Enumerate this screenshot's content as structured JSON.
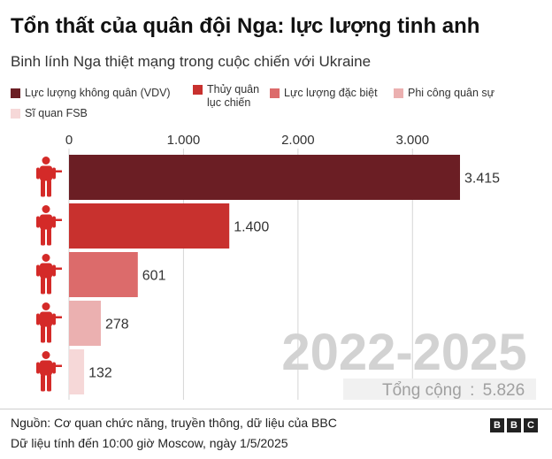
{
  "header": {
    "title": "Tổn thất của quân đội Nga: lực lượng tinh anh",
    "subtitle": "Binh lính Nga thiệt mạng trong cuộc chiến với Ukraine"
  },
  "chart_data": {
    "type": "bar",
    "orientation": "horizontal",
    "categories": [
      "Lực lượng không quân (VDV)",
      "Thủy quân lục chiến",
      "Lực lượng đặc biệt",
      "Phi công quân sự",
      "Sĩ quan FSB"
    ],
    "values": [
      3415,
      1400,
      601,
      278,
      132
    ],
    "value_labels": [
      "3.415",
      "1.400",
      "601",
      "278",
      "132"
    ],
    "colors": [
      "#6b1e24",
      "#c8312e",
      "#dc6b6b",
      "#ebb0b0",
      "#f6d8d8"
    ],
    "x_ticks": [
      0,
      1000,
      2000,
      3000
    ],
    "x_tick_labels": [
      "0",
      "1.000",
      "2.000",
      "3.000"
    ],
    "xlim": [
      0,
      3415
    ],
    "grid": true,
    "legend_position": "top",
    "watermark_label": "2022-2025",
    "total_label": "Tổng cộng",
    "total_value": "5.826"
  },
  "icon_color": "#d42a28",
  "footer": {
    "source": "Nguồn: Cơ quan chức năng, truyền thông, dữ liệu của BBC",
    "date": "Dữ liệu tính đến 10:00 giờ Moscow, ngày 1/5/2025",
    "brand_letters": [
      "B",
      "B",
      "C"
    ]
  }
}
